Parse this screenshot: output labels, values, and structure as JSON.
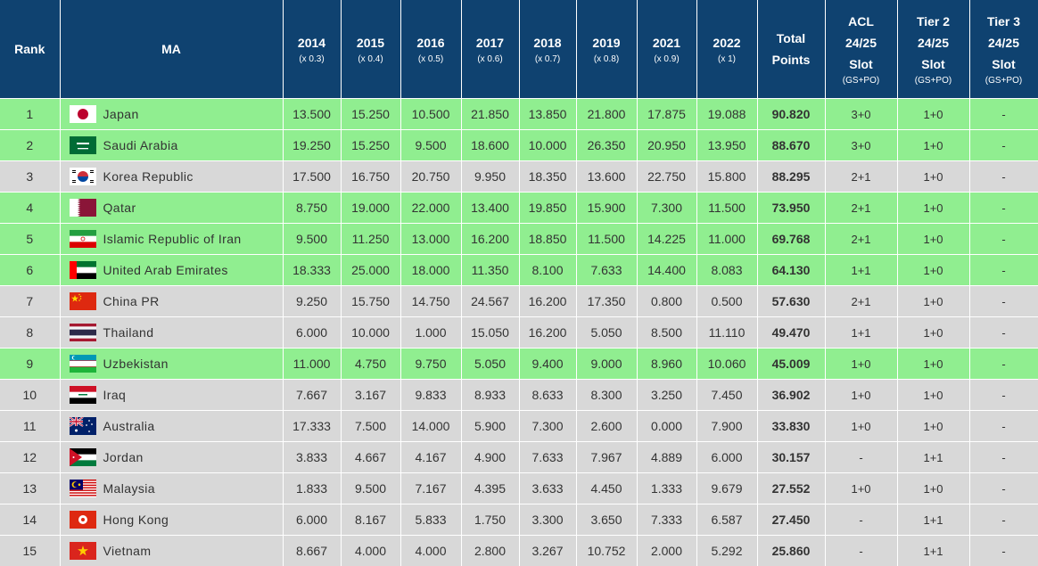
{
  "headers": {
    "rank": "Rank",
    "ma": "MA",
    "years": [
      {
        "year": "2014",
        "factor": "(x 0.3)"
      },
      {
        "year": "2015",
        "factor": "(x 0.4)"
      },
      {
        "year": "2016",
        "factor": "(x 0.5)"
      },
      {
        "year": "2017",
        "factor": "(x 0.6)"
      },
      {
        "year": "2018",
        "factor": "(x 0.7)"
      },
      {
        "year": "2019",
        "factor": "(x 0.8)"
      },
      {
        "year": "2021",
        "factor": "(x 0.9)"
      },
      {
        "year": "2022",
        "factor": "(x 1)"
      }
    ],
    "total_line1": "Total",
    "total_line2": "Points",
    "acl": {
      "line1": "ACL",
      "line2": "24/25",
      "line3": "Slot",
      "sub": "(GS+PO)"
    },
    "tier2": {
      "line1": "Tier 2",
      "line2": "24/25",
      "line3": "Slot",
      "sub": "(GS+PO)"
    },
    "tier3": {
      "line1": "Tier 3",
      "line2": "24/25",
      "line3": "Slot",
      "sub": "(GS+PO)"
    }
  },
  "colors": {
    "header_bg": "#0f4270",
    "green_row": "#90ee90",
    "gray_row": "#d8d8d8"
  },
  "rows": [
    {
      "rank": "1",
      "name": "Japan",
      "flag": "japan-flag-icon",
      "row": "green",
      "scores": [
        "13.500",
        "15.250",
        "10.500",
        "21.850",
        "13.850",
        "21.800",
        "17.875",
        "19.088"
      ],
      "total": "90.820",
      "acl": "3+0",
      "tier2": "1+0",
      "tier3": "-"
    },
    {
      "rank": "2",
      "name": "Saudi Arabia",
      "flag": "saudi-arabia-flag-icon",
      "row": "green",
      "scores": [
        "19.250",
        "15.250",
        "9.500",
        "18.600",
        "10.000",
        "26.350",
        "20.950",
        "13.950"
      ],
      "total": "88.670",
      "acl": "3+0",
      "tier2": "1+0",
      "tier3": "-"
    },
    {
      "rank": "3",
      "name": "Korea Republic",
      "flag": "korea-flag-icon",
      "row": "gray",
      "scores": [
        "17.500",
        "16.750",
        "20.750",
        "9.950",
        "18.350",
        "13.600",
        "22.750",
        "15.800"
      ],
      "total": "88.295",
      "acl": "2+1",
      "tier2": "1+0",
      "tier3": "-"
    },
    {
      "rank": "4",
      "name": "Qatar",
      "flag": "qatar-flag-icon",
      "row": "green",
      "scores": [
        "8.750",
        "19.000",
        "22.000",
        "13.400",
        "19.850",
        "15.900",
        "7.300",
        "11.500"
      ],
      "total": "73.950",
      "acl": "2+1",
      "tier2": "1+0",
      "tier3": "-"
    },
    {
      "rank": "5",
      "name": "Islamic Republic of Iran",
      "flag": "iran-flag-icon",
      "row": "green",
      "scores": [
        "9.500",
        "11.250",
        "13.000",
        "16.200",
        "18.850",
        "11.500",
        "14.225",
        "11.000"
      ],
      "total": "69.768",
      "acl": "2+1",
      "tier2": "1+0",
      "tier3": "-"
    },
    {
      "rank": "6",
      "name": "United Arab Emirates",
      "flag": "uae-flag-icon",
      "row": "green",
      "scores": [
        "18.333",
        "25.000",
        "18.000",
        "11.350",
        "8.100",
        "7.633",
        "14.400",
        "8.083"
      ],
      "total": "64.130",
      "acl": "1+1",
      "tier2": "1+0",
      "tier3": "-"
    },
    {
      "rank": "7",
      "name": "China PR",
      "flag": "china-flag-icon",
      "row": "gray",
      "scores": [
        "9.250",
        "15.750",
        "14.750",
        "24.567",
        "16.200",
        "17.350",
        "0.800",
        "0.500"
      ],
      "total": "57.630",
      "acl": "2+1",
      "tier2": "1+0",
      "tier3": "-"
    },
    {
      "rank": "8",
      "name": "Thailand",
      "flag": "thailand-flag-icon",
      "row": "gray",
      "scores": [
        "6.000",
        "10.000",
        "1.000",
        "15.050",
        "16.200",
        "5.050",
        "8.500",
        "11.110"
      ],
      "total": "49.470",
      "acl": "1+1",
      "tier2": "1+0",
      "tier3": "-"
    },
    {
      "rank": "9",
      "name": "Uzbekistan",
      "flag": "uzbekistan-flag-icon",
      "row": "green",
      "scores": [
        "11.000",
        "4.750",
        "9.750",
        "5.050",
        "9.400",
        "9.000",
        "8.960",
        "10.060"
      ],
      "total": "45.009",
      "acl": "1+0",
      "tier2": "1+0",
      "tier3": "-"
    },
    {
      "rank": "10",
      "name": "Iraq",
      "flag": "iraq-flag-icon",
      "row": "gray",
      "scores": [
        "7.667",
        "3.167",
        "9.833",
        "8.933",
        "8.633",
        "8.300",
        "3.250",
        "7.450"
      ],
      "total": "36.902",
      "acl": "1+0",
      "tier2": "1+0",
      "tier3": "-"
    },
    {
      "rank": "11",
      "name": "Australia",
      "flag": "australia-flag-icon",
      "row": "gray",
      "scores": [
        "17.333",
        "7.500",
        "14.000",
        "5.900",
        "7.300",
        "2.600",
        "0.000",
        "7.900"
      ],
      "total": "33.830",
      "acl": "1+0",
      "tier2": "1+0",
      "tier3": "-"
    },
    {
      "rank": "12",
      "name": "Jordan",
      "flag": "jordan-flag-icon",
      "row": "gray",
      "scores": [
        "3.833",
        "4.667",
        "4.167",
        "4.900",
        "7.633",
        "7.967",
        "4.889",
        "6.000"
      ],
      "total": "30.157",
      "acl": "-",
      "tier2": "1+1",
      "tier3": "-"
    },
    {
      "rank": "13",
      "name": "Malaysia",
      "flag": "malaysia-flag-icon",
      "row": "gray",
      "scores": [
        "1.833",
        "9.500",
        "7.167",
        "4.395",
        "3.633",
        "4.450",
        "1.333",
        "9.679"
      ],
      "total": "27.552",
      "acl": "1+0",
      "tier2": "1+0",
      "tier3": "-"
    },
    {
      "rank": "14",
      "name": "Hong Kong",
      "flag": "hong-kong-flag-icon",
      "row": "gray",
      "scores": [
        "6.000",
        "8.167",
        "5.833",
        "1.750",
        "3.300",
        "3.650",
        "7.333",
        "6.587"
      ],
      "total": "27.450",
      "acl": "-",
      "tier2": "1+1",
      "tier3": "-"
    },
    {
      "rank": "15",
      "name": "Vietnam",
      "flag": "vietnam-flag-icon",
      "row": "gray",
      "scores": [
        "8.667",
        "4.000",
        "4.000",
        "2.800",
        "3.267",
        "10.752",
        "2.000",
        "5.292"
      ],
      "total": "25.860",
      "acl": "-",
      "tier2": "1+1",
      "tier3": "-"
    }
  ]
}
